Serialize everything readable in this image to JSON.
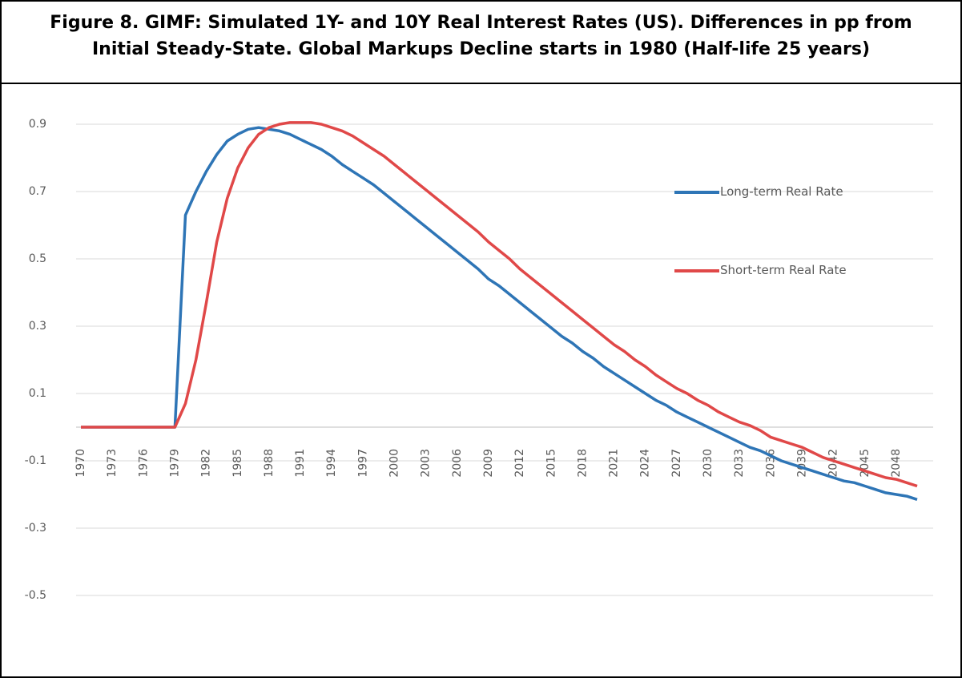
{
  "chart_data": {
    "type": "line",
    "title": [
      "Figure 8. GIMF: Simulated 1Y- and 10Y Real Interest Rates (US). Differences in pp from",
      "Initial Steady-State. Global Markups Decline starts in 1980 (Half-life 25 years)"
    ],
    "categories": [
      "1970",
      null,
      null,
      "1973",
      null,
      null,
      "1976",
      null,
      null,
      "1979",
      null,
      null,
      "1982",
      null,
      null,
      "1985",
      null,
      null,
      "1988",
      null,
      null,
      "1991",
      null,
      null,
      "1994",
      null,
      null,
      "1997",
      null,
      null,
      "2000",
      null,
      null,
      "2003",
      null,
      null,
      "2006",
      null,
      null,
      "2009",
      null,
      null,
      "2012",
      null,
      null,
      "2015",
      null,
      null,
      "2018",
      null,
      null,
      "2021",
      null,
      null,
      "2024",
      null,
      null,
      "2027",
      null,
      null,
      "2030",
      null,
      null,
      "2033",
      null,
      null,
      "2036",
      null,
      null,
      "2039",
      null,
      null,
      "2042",
      null,
      null,
      "2045",
      null,
      null,
      "2048",
      null,
      null
    ],
    "series": [
      {
        "name": "Long-term Real Rate",
        "color": "#2e75b6",
        "values": [
          0,
          0,
          0,
          0,
          0,
          0,
          0,
          0,
          0,
          0,
          0.63,
          0.7,
          0.76,
          0.81,
          0.85,
          0.87,
          0.885,
          0.89,
          0.885,
          0.88,
          0.87,
          0.855,
          0.84,
          0.825,
          0.805,
          0.78,
          0.76,
          0.74,
          0.72,
          0.695,
          0.67,
          0.645,
          0.62,
          0.595,
          0.57,
          0.545,
          0.52,
          0.495,
          0.47,
          0.44,
          0.42,
          0.395,
          0.37,
          0.345,
          0.32,
          0.295,
          0.27,
          0.25,
          0.225,
          0.205,
          0.18,
          0.16,
          0.14,
          0.12,
          0.1,
          0.08,
          0.065,
          0.045,
          0.03,
          0.015,
          0,
          -0.015,
          -0.03,
          -0.045,
          -0.06,
          -0.07,
          -0.085,
          -0.1,
          -0.11,
          -0.12,
          -0.13,
          -0.14,
          -0.15,
          -0.16,
          -0.165,
          -0.175,
          -0.185,
          -0.195,
          -0.2,
          -0.205,
          -0.215
        ]
      },
      {
        "name": "Short-term Real Rate",
        "color": "#e04848",
        "values": [
          0,
          0,
          0,
          0,
          0,
          0,
          0,
          0,
          0,
          0,
          0.07,
          0.2,
          0.37,
          0.55,
          0.68,
          0.77,
          0.83,
          0.87,
          0.89,
          0.9,
          0.905,
          0.905,
          0.905,
          0.9,
          0.89,
          0.88,
          0.865,
          0.845,
          0.825,
          0.805,
          0.78,
          0.755,
          0.73,
          0.705,
          0.68,
          0.655,
          0.63,
          0.605,
          0.58,
          0.55,
          0.525,
          0.5,
          0.47,
          0.445,
          0.42,
          0.395,
          0.37,
          0.345,
          0.32,
          0.295,
          0.27,
          0.245,
          0.225,
          0.2,
          0.18,
          0.155,
          0.135,
          0.115,
          0.1,
          0.08,
          0.065,
          0.045,
          0.03,
          0.015,
          0.005,
          -0.01,
          -0.03,
          -0.04,
          -0.05,
          -0.06,
          -0.075,
          -0.09,
          -0.1,
          -0.11,
          -0.12,
          -0.13,
          -0.14,
          -0.15,
          -0.155,
          -0.165,
          -0.175
        ]
      }
    ],
    "ylim": [
      -0.7,
      1.0
    ],
    "yticks": [
      -0.5,
      -0.3,
      -0.1,
      0.1,
      0.3,
      0.5,
      0.7,
      0.9
    ],
    "grid": true
  }
}
